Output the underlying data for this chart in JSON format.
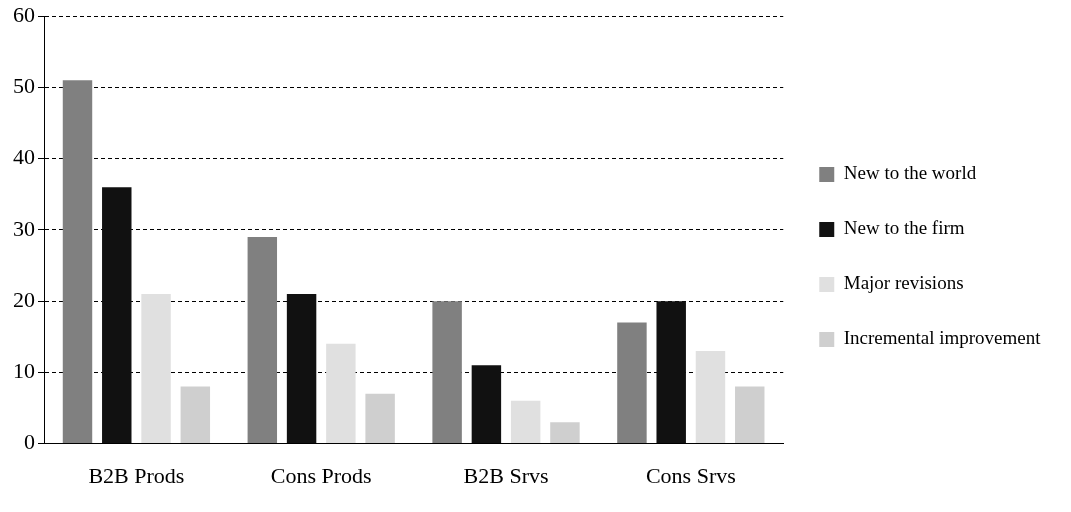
{
  "chart_data": {
    "type": "bar",
    "categories": [
      "B2B Prods",
      "Cons Prods",
      "B2B Srvs",
      "Cons Srvs"
    ],
    "series": [
      {
        "name": "New to the world",
        "color": "#808080",
        "values": [
          51,
          29,
          20,
          17
        ]
      },
      {
        "name": "New to the firm",
        "color": "#111111",
        "values": [
          36,
          21,
          11,
          20
        ]
      },
      {
        "name": "Major revisions",
        "color": "#e0e0e0",
        "values": [
          21,
          14,
          6,
          13
        ]
      },
      {
        "name": "Incremental improvement",
        "color": "#cfcfcf",
        "values": [
          8,
          7,
          3,
          8
        ]
      }
    ],
    "ylim": [
      0,
      60
    ],
    "yticks": [
      0,
      10,
      20,
      30,
      40,
      50,
      60
    ],
    "grid": "y",
    "legend": "right"
  }
}
